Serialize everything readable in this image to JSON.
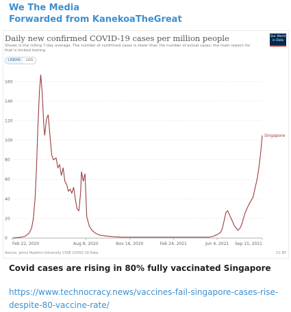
{
  "message": {
    "channel_name": "We The Media",
    "forwarded_from": "Forwarded from KanekoaTheGreat",
    "caption": "Covid cases are rising in 80% fully vaccinated Singapore",
    "link_text": "https://www.technocracy.news/vaccines-fail-singapore-cases-rise-despite-80-vaccine-rate/"
  },
  "chart_card": {
    "logo_line1": "Our World",
    "logo_line2": "in Data",
    "toggle_linear": "LINEAR",
    "toggle_log": "LOG",
    "source": "Source: Johns Hopkins University CSSE COVID-19 Data",
    "license": "CC BY"
  },
  "chart_data": {
    "type": "line",
    "title": "Daily new confirmed COVID-19 cases per million people",
    "subtitle": "Shown is the rolling 7-day average. The number of confirmed cases is lower than the number of actual cases; the main reason for that is limited testing.",
    "y_ticks": [
      0,
      20,
      40,
      60,
      80,
      100,
      120,
      140,
      160
    ],
    "ylim": [
      0,
      170
    ],
    "x_tick_labels": [
      "Feb 22, 2020",
      "Aug 8, 2020",
      "Nov 16, 2020",
      "Feb 24, 2021",
      "Jun 4, 2021",
      "Sep 15, 2021"
    ],
    "x_tick_days": [
      0,
      168,
      268,
      368,
      468,
      571
    ],
    "x_range_days": [
      0,
      571
    ],
    "series": [
      {
        "name": "Singapore",
        "color": "#9a3b3b",
        "x": [
          0,
          10,
          20,
          30,
          38,
          44,
          48,
          52,
          55,
          58,
          62,
          65,
          68,
          72,
          74,
          78,
          82,
          86,
          90,
          94,
          100,
          104,
          108,
          112,
          116,
          120,
          124,
          128,
          132,
          136,
          140,
          144,
          148,
          152,
          156,
          158,
          162,
          166,
          170,
          176,
          182,
          190,
          200,
          215,
          230,
          250,
          270,
          290,
          310,
          330,
          350,
          370,
          390,
          410,
          430,
          450,
          460,
          470,
          476,
          480,
          484,
          488,
          492,
          496,
          500,
          504,
          508,
          512,
          516,
          520,
          524,
          528,
          532,
          536,
          540,
          545,
          550,
          555,
          560,
          564,
          568,
          571
        ],
        "y": [
          0,
          0.5,
          1,
          2,
          5,
          10,
          20,
          40,
          70,
          110,
          150,
          167,
          150,
          115,
          105,
          122,
          126,
          105,
          85,
          80,
          82,
          72,
          75,
          64,
          72,
          58,
          55,
          48,
          50,
          46,
          52,
          40,
          30,
          28,
          46,
          68,
          58,
          66,
          22,
          12,
          8,
          5,
          3,
          2,
          1.5,
          1,
          1,
          1,
          1,
          1,
          1,
          1,
          1,
          1,
          1,
          1,
          2,
          4,
          6,
          10,
          18,
          26,
          28,
          24,
          20,
          16,
          12,
          10,
          8,
          10,
          14,
          20,
          26,
          30,
          34,
          38,
          42,
          52,
          62,
          74,
          90,
          105
        ]
      }
    ]
  }
}
